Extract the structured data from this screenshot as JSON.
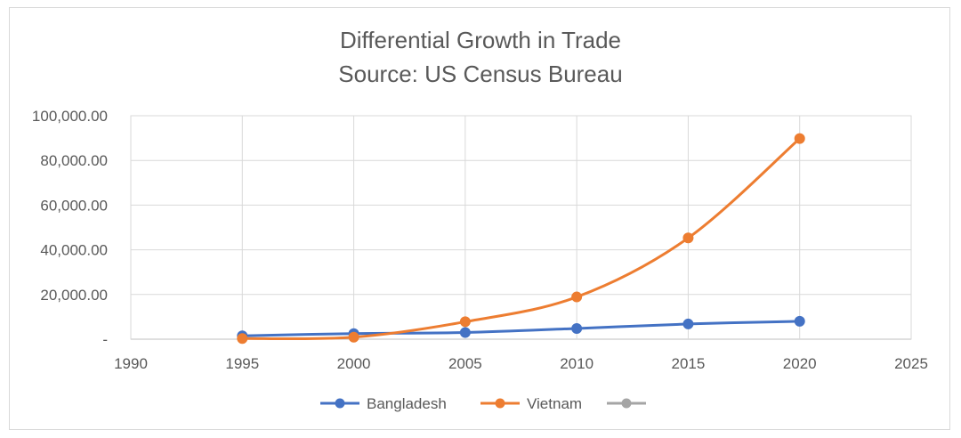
{
  "chart_data": {
    "type": "scatter",
    "title": "Differential Growth in Trade",
    "subtitle": "Source: US Census Bureau",
    "xlim": [
      1990,
      2025
    ],
    "ylim": [
      0,
      100000
    ],
    "x_ticks": [
      1990,
      1995,
      2000,
      2005,
      2010,
      2015,
      2020,
      2025
    ],
    "y_ticks": [
      0,
      20000,
      40000,
      60000,
      80000,
      100000
    ],
    "y_tick_labels": [
      "-",
      "20,000.00",
      "40,000.00",
      "60,000.00",
      "80,000.00",
      "100,000.00"
    ],
    "grid": true,
    "legend_position": "bottom",
    "series": [
      {
        "name": "Bangladesh",
        "color": "#4472C4",
        "x": [
          1995,
          2000,
          2005,
          2010,
          2015,
          2020
        ],
        "y": [
          1500,
          2500,
          3000,
          4800,
          6800,
          8000
        ]
      },
      {
        "name": "Vietnam",
        "color": "#ED7D31",
        "x": [
          1995,
          2000,
          2005,
          2010,
          2015,
          2020
        ],
        "y": [
          300,
          900,
          7800,
          18900,
          45300,
          89800
        ]
      },
      {
        "name": "",
        "color": "#A5A5A5",
        "x": [],
        "y": []
      }
    ]
  }
}
